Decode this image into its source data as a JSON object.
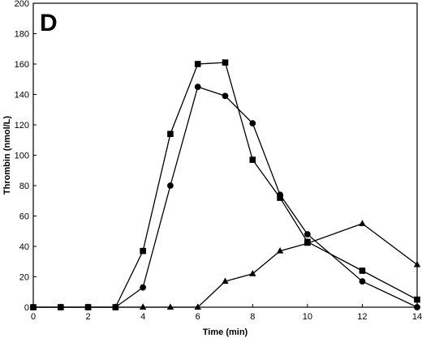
{
  "chart_data": {
    "type": "line",
    "panel_label": "D",
    "xlabel": "Time (min)",
    "ylabel": "Thrombin (nmol/L)",
    "xlim": [
      0,
      14
    ],
    "ylim": [
      0,
      200
    ],
    "x_ticks": [
      0,
      2,
      4,
      6,
      8,
      10,
      12,
      14
    ],
    "y_ticks": [
      0,
      20,
      40,
      60,
      80,
      100,
      120,
      140,
      160,
      180,
      200
    ],
    "grid": false,
    "series": [
      {
        "marker": "square",
        "x": [
          0,
          1,
          2,
          3,
          4,
          5,
          6,
          7,
          8,
          9,
          10,
          12,
          14
        ],
        "y": [
          0,
          0,
          0,
          0,
          37,
          114,
          160,
          161,
          97,
          72,
          43,
          24,
          5
        ]
      },
      {
        "marker": "circle",
        "x": [
          0,
          1,
          2,
          3,
          4,
          5,
          6,
          7,
          8,
          9,
          10,
          12,
          14
        ],
        "y": [
          0,
          0,
          0,
          0,
          13,
          80,
          145,
          139,
          121,
          74,
          48,
          17,
          0
        ]
      },
      {
        "marker": "triangle",
        "x": [
          0,
          1,
          2,
          3,
          4,
          5,
          6,
          7,
          8,
          9,
          10,
          12,
          14
        ],
        "y": [
          0,
          0,
          0,
          0,
          0,
          0,
          0,
          17,
          22,
          37,
          42,
          55,
          28
        ]
      }
    ]
  }
}
